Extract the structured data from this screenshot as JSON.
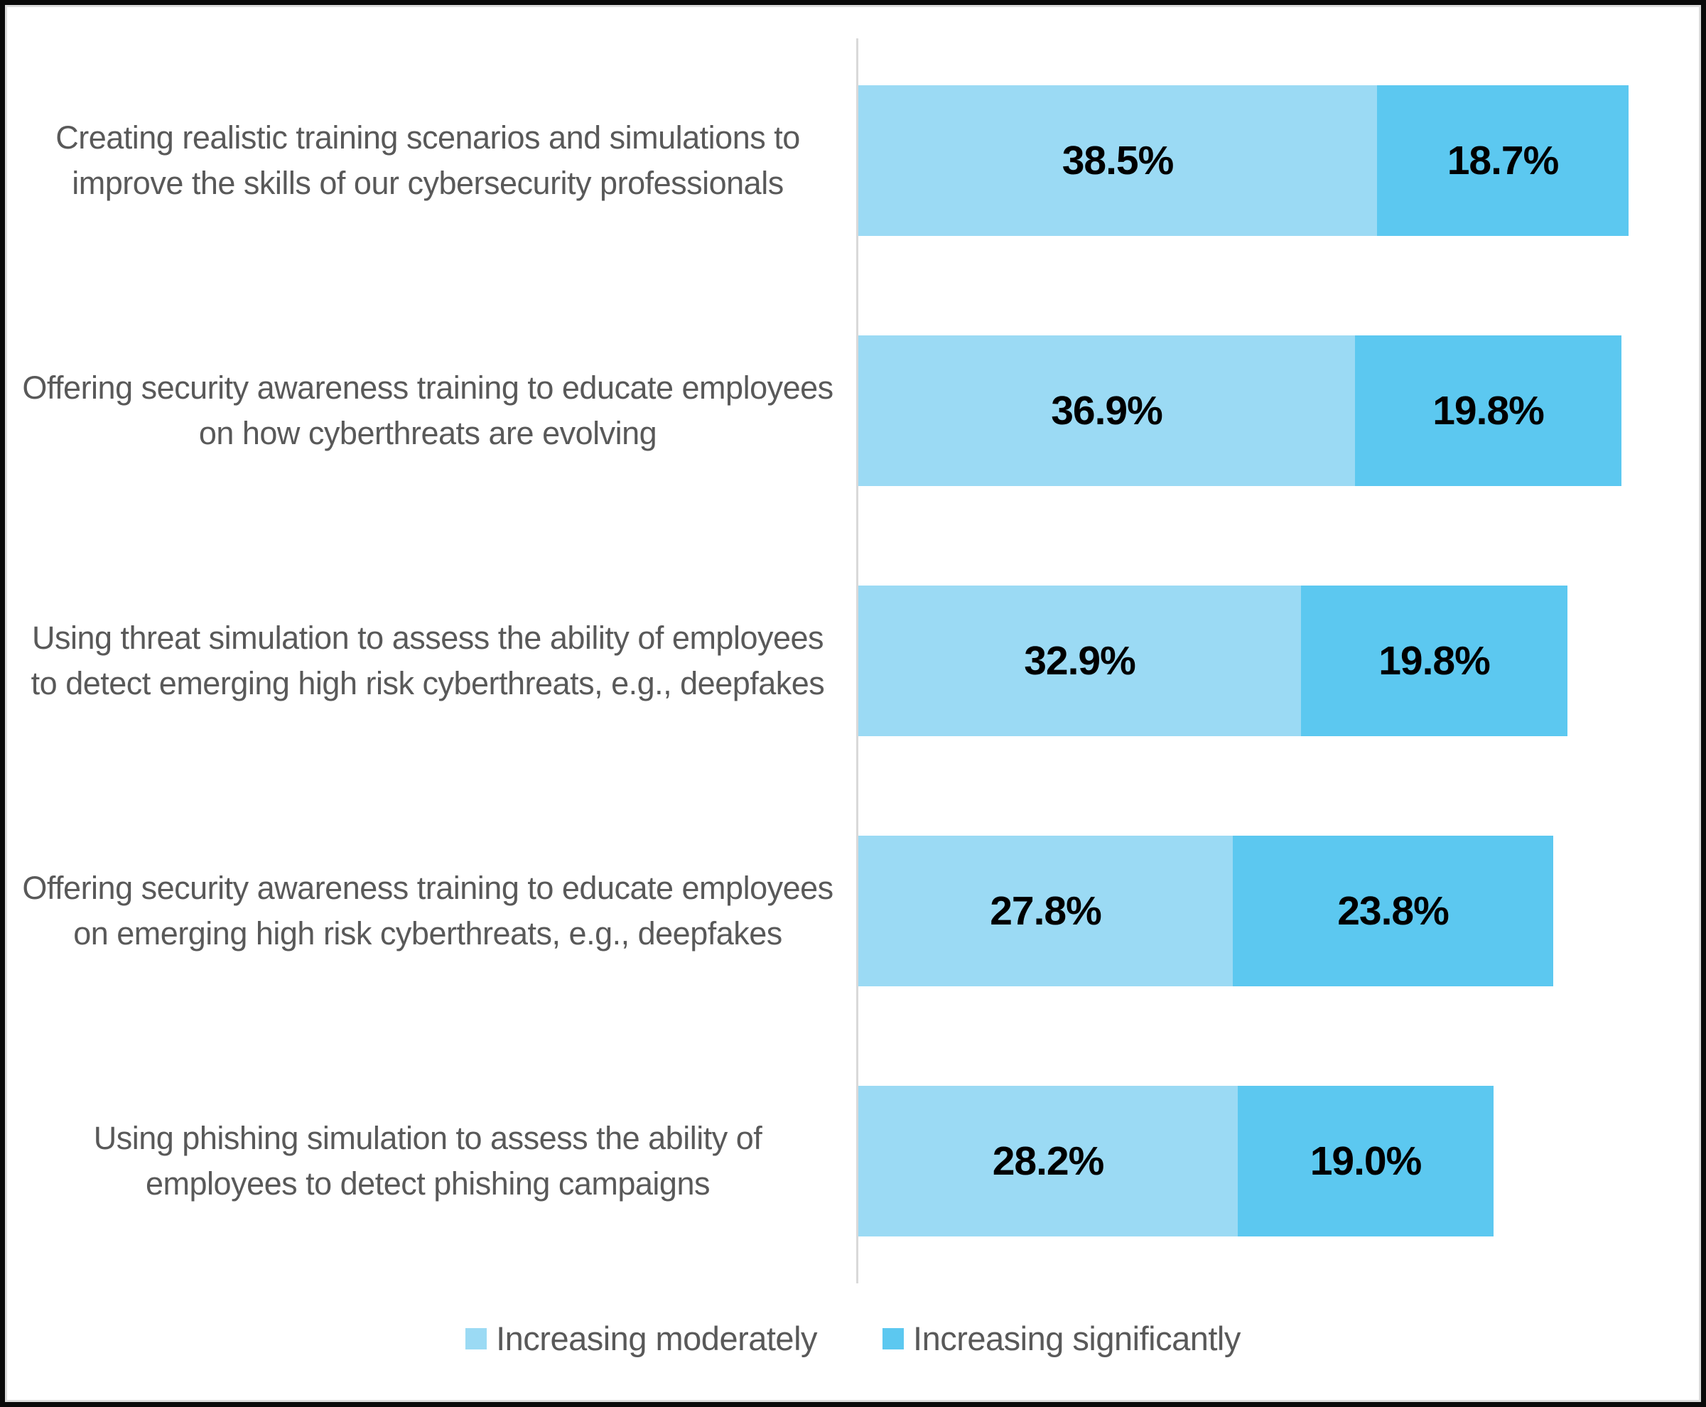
{
  "chart_data": {
    "type": "bar",
    "orientation": "horizontal",
    "stacked": true,
    "title": "",
    "xlabel": "",
    "ylabel": "",
    "grid": false,
    "xlim": [
      0,
      60
    ],
    "legend_position": "bottom",
    "value_label_format": "percent_1dp",
    "categories": [
      "Creating realistic training scenarios and simulations to improve the skills of our cybersecurity professionals",
      "Offering security awareness training to educate employees on how cyberthreats are evolving",
      "Using threat simulation to assess the ability of employees to detect emerging high risk cyberthreats, e.g., deepfakes",
      "Offering security awareness training to educate employees on emerging high risk cyberthreats, e.g., deepfakes",
      "Using phishing simulation to assess the ability of employees to detect phishing campaigns"
    ],
    "series": [
      {
        "name": "Increasing moderately",
        "color": "#9BDAF4",
        "values": [
          38.5,
          36.9,
          32.9,
          27.8,
          28.2
        ]
      },
      {
        "name": "Increasing significantly",
        "color": "#5CC8F0",
        "values": [
          18.7,
          19.8,
          19.8,
          23.8,
          19.0
        ]
      }
    ],
    "value_labels": [
      [
        "38.5%",
        "18.7%"
      ],
      [
        "36.9%",
        "19.8%"
      ],
      [
        "32.9%",
        "19.8%"
      ],
      [
        "27.8%",
        "23.8%"
      ],
      [
        "28.2%",
        "19.0%"
      ]
    ]
  },
  "legend": {
    "items": [
      {
        "label": "Increasing moderately",
        "color": "#9BDAF4"
      },
      {
        "label": "Increasing significantly",
        "color": "#5CC8F0"
      }
    ]
  },
  "styles": {
    "background": "#FFFFFF",
    "border_color": "#0A0A0A",
    "axis_line_color": "#D9D9D9",
    "category_label_color": "#595959",
    "value_label_color": "#000000"
  }
}
